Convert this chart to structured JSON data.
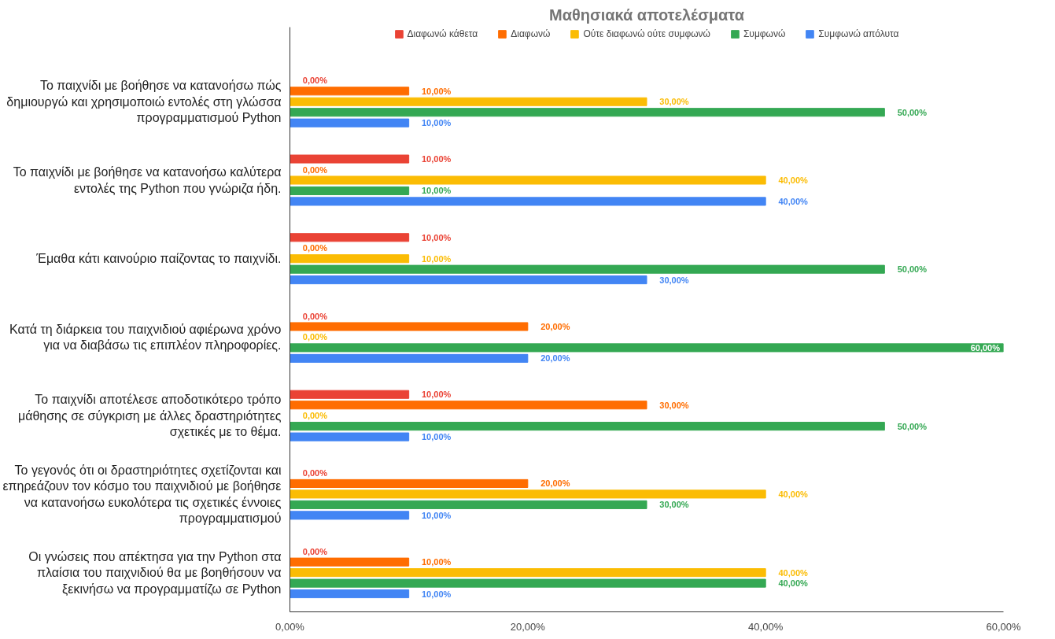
{
  "chart_data": {
    "type": "bar",
    "orientation": "horizontal",
    "title": "Μαθησιακά αποτελέσματα",
    "categories": [
      "Το παιχνίδι με βοήθησε να κατανοήσω πώς δημιουργώ και χρησιμοποιώ εντολές στη γλώσσα προγραμματισμού Python",
      "Το παιχνίδι με βοήθησε να κατανοήσω καλύτερα εντολές της Python που γνώριζα ήδη.",
      "Έμαθα κάτι καινούριο παίζοντας το παιχνίδι.",
      "Κατά τη διάρκεια του παιχνιδιού αφιέρωνα χρόνο για να διαβάσω τις επιπλέον πληροφορίες.",
      "Το παιχνίδι αποτέλεσε αποδοτικότερο τρόπο μάθησης σε σύγκριση με άλλες δραστηριότητες σχετικές με το θέμα.",
      "Το γεγονός ότι οι δραστηριότητες σχετίζονται και επηρεάζουν τον κόσμο του παιχνιδιού με βοήθησε να κατανοήσω ευκολότερα τις σχετικές έννοιες προγραμματισμού",
      "Οι γνώσεις που απέκτησα για την Python στα πλαίσια του παιχνιδιού θα με βοηθήσουν να ξεκινήσω να προγραμματίζω σε Python"
    ],
    "series": [
      {
        "name": "Διαφωνώ κάθετα",
        "color": "#ea4335",
        "values": [
          0,
          10,
          10,
          0,
          10,
          0,
          0
        ],
        "value_labels": [
          "0,00%",
          "10,00%",
          "10,00%",
          "0,00%",
          "10,00%",
          "0,00%",
          "0,00%"
        ]
      },
      {
        "name": "Διαφωνώ",
        "color": "#ff6d01",
        "values": [
          10,
          0,
          0,
          20,
          30,
          20,
          10
        ],
        "value_labels": [
          "10,00%",
          "0,00%",
          "0,00%",
          "20,00%",
          "30,00%",
          "20,00%",
          "10,00%"
        ]
      },
      {
        "name": "Ούτε διαφωνώ ούτε συμφωνώ",
        "color": "#fbbc04",
        "values": [
          30,
          40,
          10,
          0,
          0,
          40,
          40
        ],
        "value_labels": [
          "30,00%",
          "40,00%",
          "10,00%",
          "0,00%",
          "0,00%",
          "40,00%",
          "40,00%"
        ]
      },
      {
        "name": "Συμφωνώ",
        "color": "#34a853",
        "values": [
          50,
          10,
          50,
          60,
          50,
          30,
          40
        ],
        "value_labels": [
          "50,00%",
          "10,00%",
          "50,00%",
          "60,00%",
          "50,00%",
          "30,00%",
          "40,00%"
        ]
      },
      {
        "name": "Συμφωνώ απόλυτα",
        "color": "#4285f4",
        "values": [
          10,
          40,
          30,
          20,
          10,
          10,
          10
        ],
        "value_labels": [
          "10,00%",
          "40,00%",
          "30,00%",
          "20,00%",
          "10,00%",
          "10,00%",
          "10,00%"
        ]
      }
    ],
    "xlim": [
      0,
      60
    ],
    "xticks": [
      {
        "value": 0,
        "label": "0,00%"
      },
      {
        "value": 20,
        "label": "20,00%"
      },
      {
        "value": 40,
        "label": "40,00%"
      },
      {
        "value": 60,
        "label": "60,00%"
      }
    ],
    "grid": false,
    "legend": "top"
  }
}
